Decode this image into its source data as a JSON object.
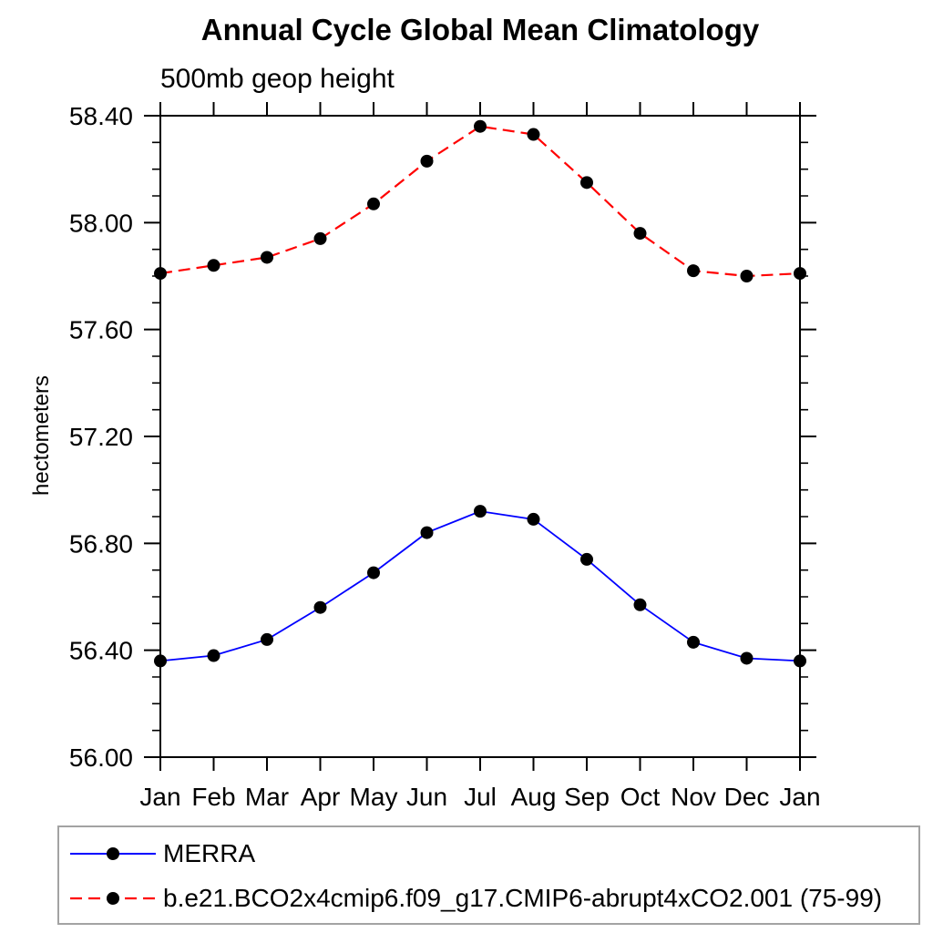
{
  "title": "Annual Cycle Global Mean Climatology",
  "subtitle": "500mb geop height",
  "y_axis_title": "hectometers",
  "colors": {
    "background": "#ffffff",
    "axis": "#000000",
    "text": "#000000",
    "marker": "#000000",
    "merra_line": "#0000ff",
    "model_line": "#ff0000",
    "legend_border": "#a3a3a3"
  },
  "chart_data": {
    "type": "line",
    "title": "Annual Cycle Global Mean Climatology",
    "subtitle": "500mb geop height",
    "xlabel": "",
    "ylabel": "hectometers",
    "categories": [
      "Jan",
      "Feb",
      "Mar",
      "Apr",
      "May",
      "Jun",
      "Jul",
      "Aug",
      "Sep",
      "Oct",
      "Nov",
      "Dec",
      "Jan"
    ],
    "ylim": [
      56.0,
      58.4
    ],
    "yticks_major": [
      58.4,
      58.0,
      57.6,
      57.2,
      56.8,
      56.4,
      56.0
    ],
    "ytick_labels": [
      "58.40",
      "58.00",
      "57.60",
      "57.20",
      "56.80",
      "56.40",
      "56.00"
    ],
    "ytick_minor_step": 0.1,
    "grid": false,
    "legend_position": "bottom",
    "series": [
      {
        "name": "MERRA",
        "color": "#0000ff",
        "line_style": "solid",
        "marker": "filled-circle",
        "marker_color": "#000000",
        "values": [
          56.36,
          56.38,
          56.44,
          56.56,
          56.69,
          56.84,
          56.92,
          56.89,
          56.74,
          56.57,
          56.43,
          56.37,
          56.36
        ]
      },
      {
        "name": "b.e21.BCO2x4cmip6.f09_g17.CMIP6-abrupt4xCO2.001 (75-99)",
        "color": "#ff0000",
        "line_style": "dashed",
        "marker": "filled-circle",
        "marker_color": "#000000",
        "values": [
          57.81,
          57.84,
          57.87,
          57.94,
          58.07,
          58.23,
          58.36,
          58.33,
          58.15,
          57.96,
          57.82,
          57.8,
          57.81
        ]
      }
    ]
  }
}
